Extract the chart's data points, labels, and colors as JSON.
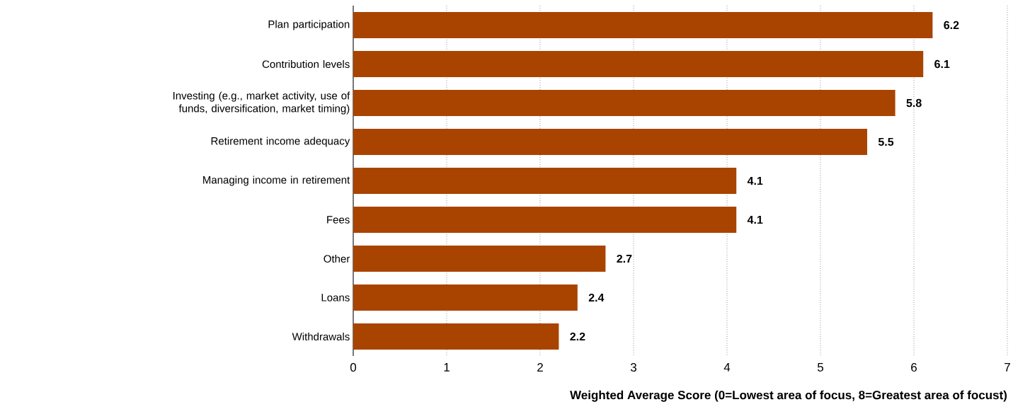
{
  "chart_data": {
    "type": "bar",
    "orientation": "horizontal",
    "categories": [
      "Plan participation",
      "Contribution levels",
      "Investing (e.g., market activity, use of funds, diversification, market timing)",
      "Retirement income adequacy",
      "Managing income in retirement",
      "Fees",
      "Other",
      "Loans",
      "Withdrawals"
    ],
    "values": [
      6.2,
      6.1,
      5.8,
      5.5,
      4.1,
      4.1,
      2.7,
      2.4,
      2.2
    ],
    "color": "#a94400",
    "xlabel": "Weighted Average Score (0=Lowest area of focus, 8=Greatest area of focust)",
    "xlim": [
      0,
      7
    ],
    "xticks": [
      0,
      1,
      2,
      3,
      4,
      5,
      6,
      7
    ],
    "grid": "x",
    "data_labels": true
  }
}
